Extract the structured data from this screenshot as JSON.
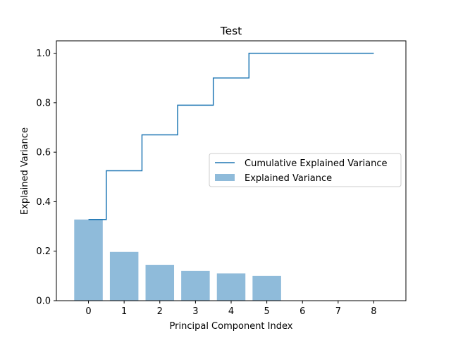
{
  "chart_data": {
    "type": "bar",
    "title": "Test",
    "xlabel": "Principal Component Index",
    "ylabel": "Explained Variance",
    "xlim": [
      -0.9,
      8.9
    ],
    "ylim": [
      0,
      1.05
    ],
    "xticks": [
      "0",
      "1",
      "2",
      "3",
      "4",
      "5",
      "6",
      "7",
      "8"
    ],
    "yticks": [
      "0.0",
      "0.2",
      "0.4",
      "0.6",
      "0.8",
      "1.0"
    ],
    "grid": false,
    "legend_position": "center-right",
    "series": [
      {
        "name": "Explained Variance",
        "type": "bar",
        "color": "#8fbbda",
        "x": [
          0,
          1,
          2,
          3,
          4,
          5,
          6,
          7,
          8
        ],
        "values": [
          0.328,
          0.197,
          0.145,
          0.12,
          0.11,
          0.1,
          0.0,
          0.0,
          0.0
        ]
      },
      {
        "name": "Cumulative Explained Variance",
        "type": "step",
        "color": "#1f77b4",
        "x": [
          0,
          1,
          2,
          3,
          4,
          5,
          6,
          7,
          8
        ],
        "values": [
          0.328,
          0.525,
          0.67,
          0.79,
          0.9,
          1.0,
          1.0,
          1.0,
          1.0
        ]
      }
    ]
  }
}
